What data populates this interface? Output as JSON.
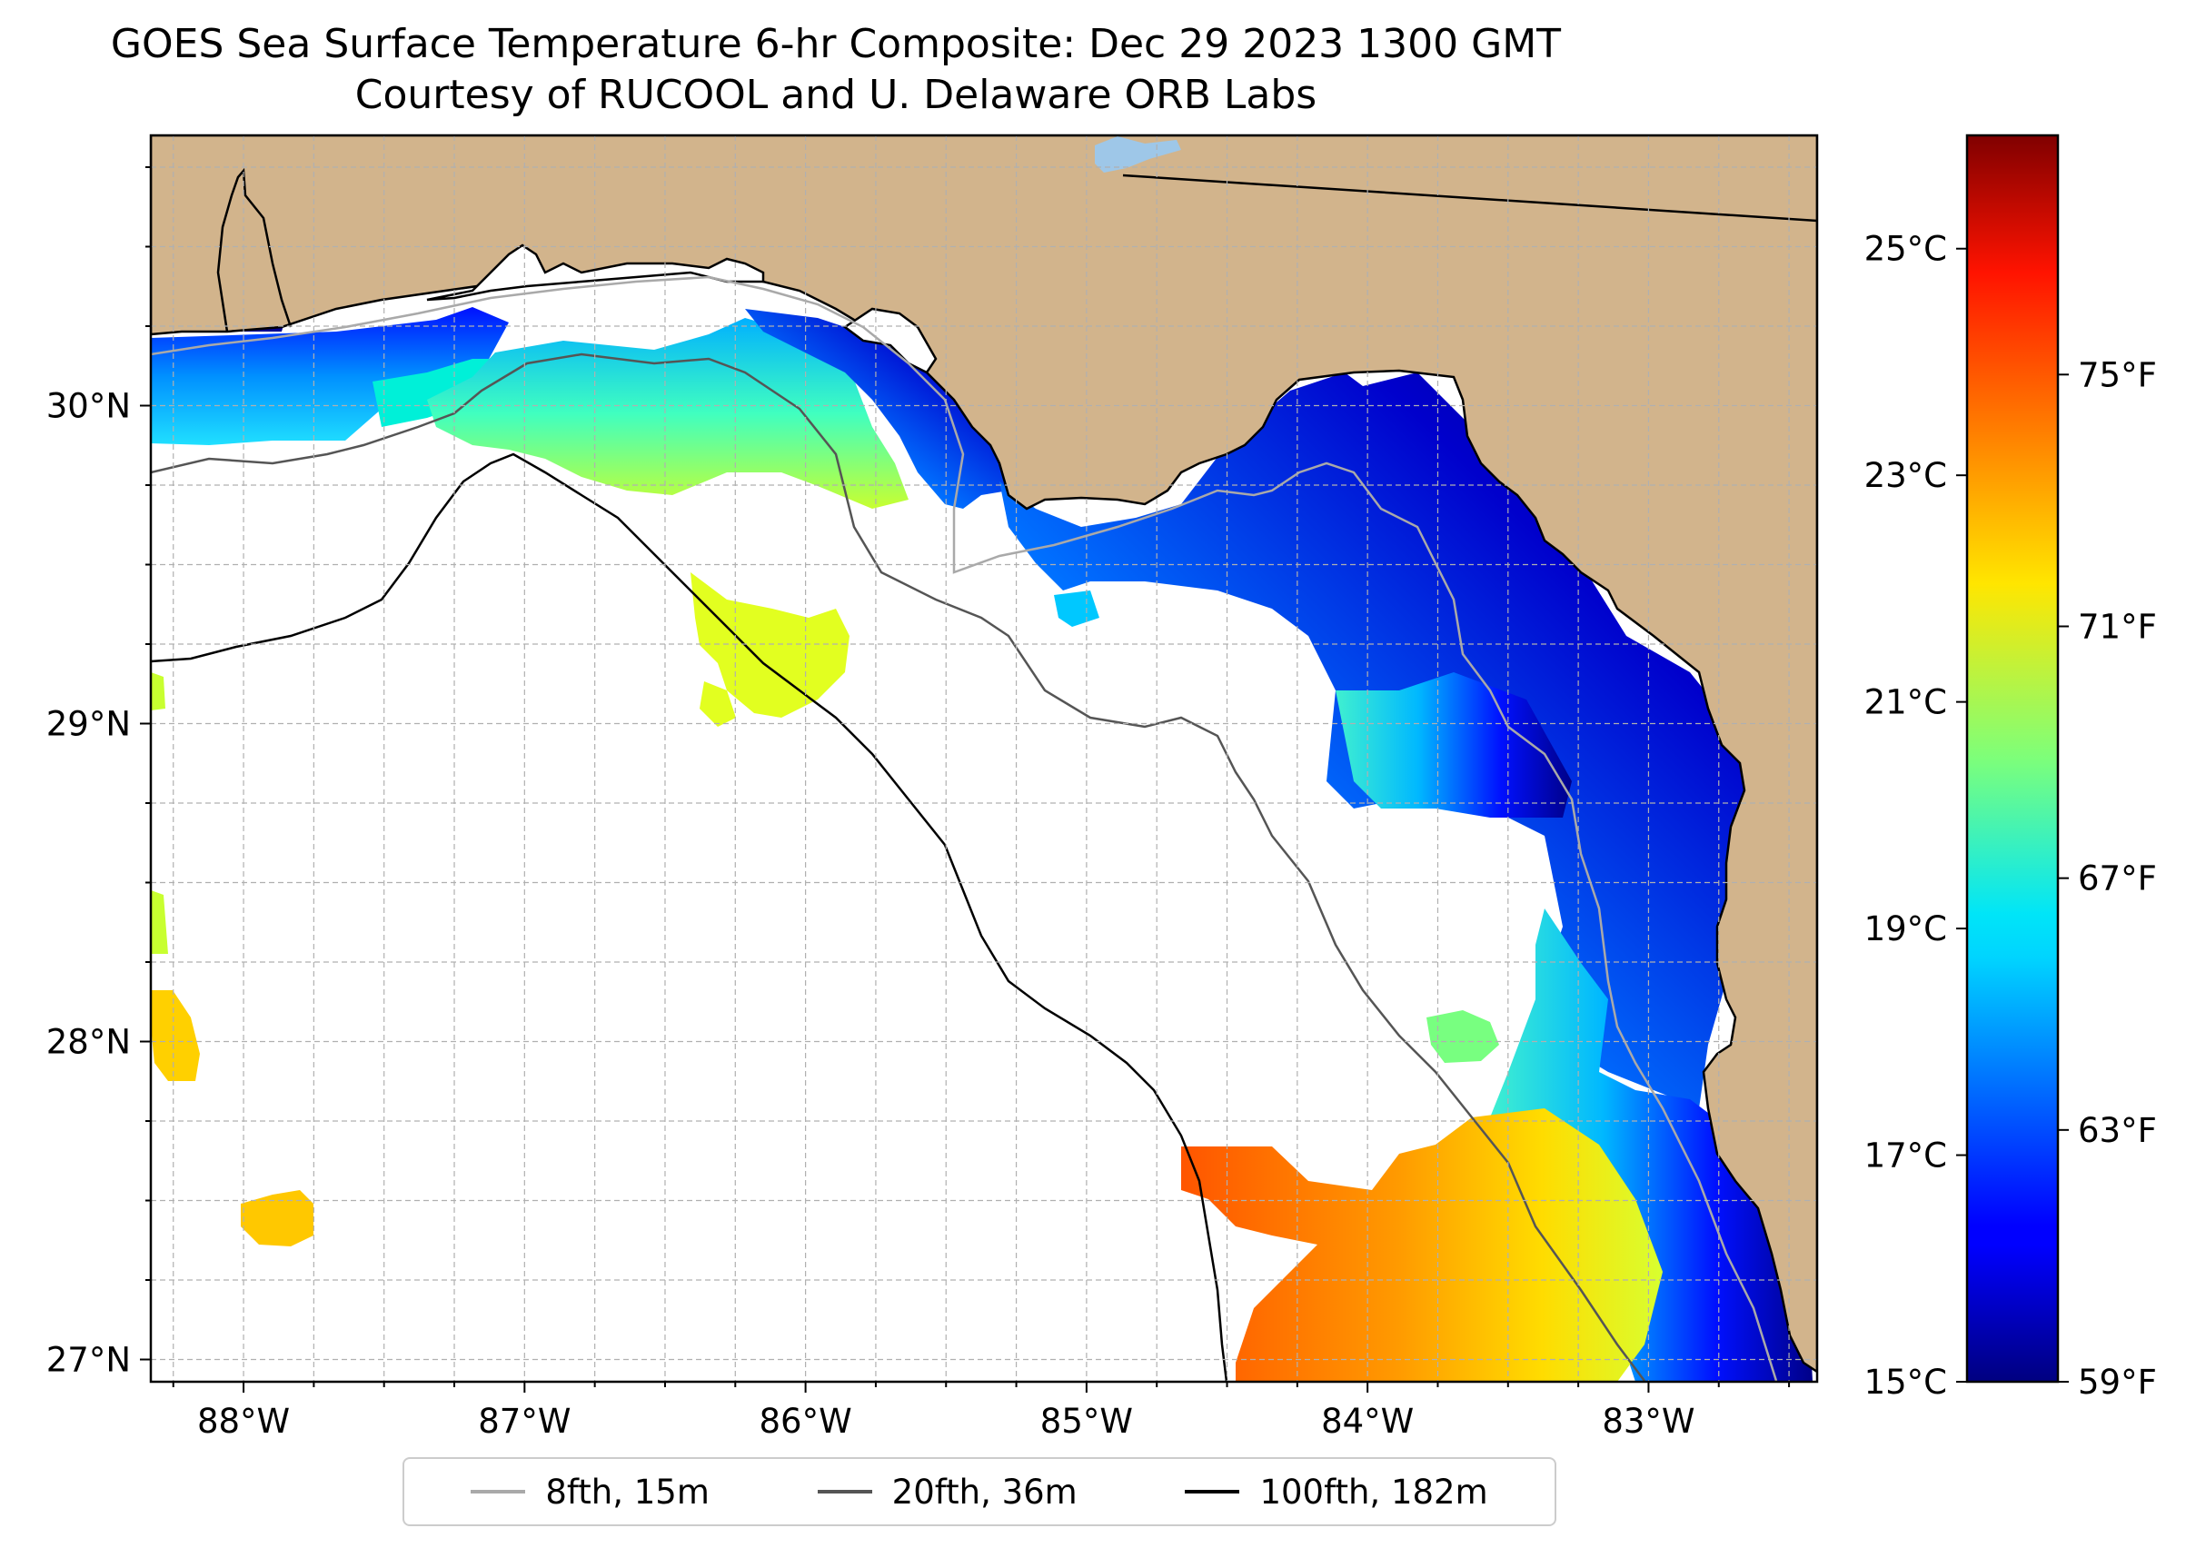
{
  "title": {
    "line1": "GOES Sea Surface Temperature 6-hr Composite: Dec 29 2023 1300 GMT",
    "line2": "Courtesy of RUCOOL and U. Delaware ORB Labs"
  },
  "map": {
    "lon_range": [
      -88.33,
      -82.4
    ],
    "lat_range": [
      26.93,
      30.85
    ],
    "lon_ticks": [
      {
        "value": -88,
        "label": "88°W"
      },
      {
        "value": -87,
        "label": "87°W"
      },
      {
        "value": -86,
        "label": "86°W"
      },
      {
        "value": -85,
        "label": "85°W"
      },
      {
        "value": -84,
        "label": "84°W"
      },
      {
        "value": -83,
        "label": "83°W"
      }
    ],
    "lat_ticks": [
      {
        "value": 27,
        "label": "27°N"
      },
      {
        "value": 28,
        "label": "28°N"
      },
      {
        "value": 29,
        "label": "29°N"
      },
      {
        "value": 30,
        "label": "30°N"
      }
    ],
    "land_color": "#d2b48c",
    "ocean_color": "#ffffff"
  },
  "colorbar": {
    "celsius_range": [
      15,
      26
    ],
    "celsius_ticks": [
      {
        "value": 15,
        "label": "15°C"
      },
      {
        "value": 17,
        "label": "17°C"
      },
      {
        "value": 19,
        "label": "19°C"
      },
      {
        "value": 21,
        "label": "21°C"
      },
      {
        "value": 23,
        "label": "23°C"
      },
      {
        "value": 25,
        "label": "25°C"
      }
    ],
    "fahrenheit_ticks": [
      {
        "value": 59,
        "label": "59°F"
      },
      {
        "value": 63,
        "label": "63°F"
      },
      {
        "value": 67,
        "label": "67°F"
      },
      {
        "value": 71,
        "label": "71°F"
      },
      {
        "value": 75,
        "label": "75°F"
      }
    ],
    "colormap": "jet"
  },
  "legend": {
    "items": [
      {
        "label": "8fth, 15m",
        "color": "#a9a9a9"
      },
      {
        "label": "20fth, 36m",
        "color": "#555555"
      },
      {
        "label": "100fth, 182m",
        "color": "#000000"
      }
    ]
  }
}
